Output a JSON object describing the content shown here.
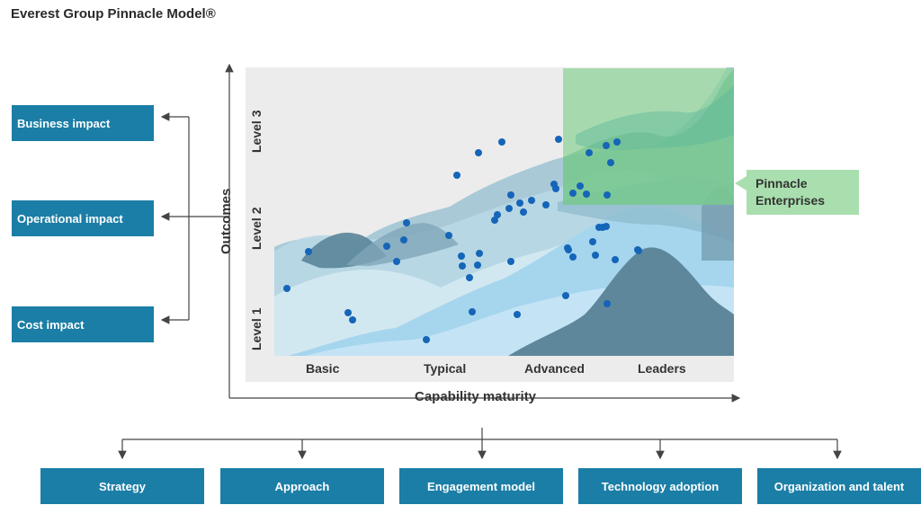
{
  "title": "Everest Group Pinnacle Model®",
  "side_items": [
    {
      "label": "Business impact"
    },
    {
      "label": "Operational impact"
    },
    {
      "label": "Cost impact"
    }
  ],
  "y_axis": {
    "label": "Outcomes",
    "levels": [
      "Level 1",
      "Level 2",
      "Level 3"
    ]
  },
  "x_axis": {
    "label": "Capability maturity",
    "categories": [
      "Basic",
      "Typical",
      "Advanced",
      "Leaders"
    ]
  },
  "callout": {
    "line1": "Pinnacle",
    "line2": "Enterprises"
  },
  "bottom_items": [
    {
      "label": "Strategy"
    },
    {
      "label": "Approach"
    },
    {
      "label": "Engagement model"
    },
    {
      "label": "Technology adoption"
    },
    {
      "label": "Organization and talent"
    }
  ],
  "colors": {
    "box": "#1b7ea6",
    "pinnacle": "#a9dfae",
    "dot": "#1565b8"
  }
}
